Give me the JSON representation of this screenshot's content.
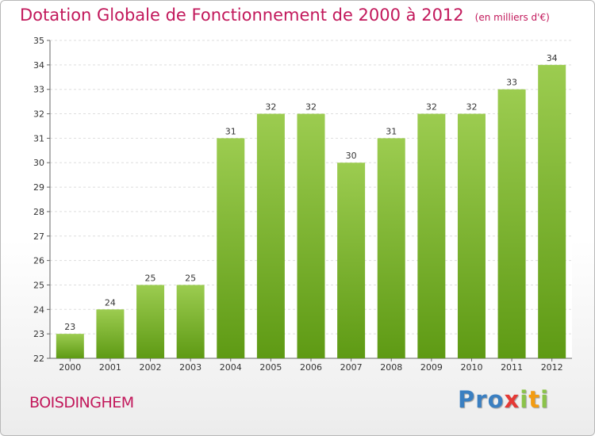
{
  "chart_data": {
    "type": "bar",
    "title": "Dotation Globale de Fonctionnement de 2000 à 2012",
    "subtitle": "(en milliers d'€)",
    "categories": [
      "2000",
      "2001",
      "2002",
      "2003",
      "2004",
      "2005",
      "2006",
      "2007",
      "2008",
      "2009",
      "2010",
      "2011",
      "2012"
    ],
    "values": [
      23,
      24,
      25,
      25,
      31,
      32,
      32,
      30,
      31,
      32,
      32,
      33,
      34
    ],
    "ylim": [
      22,
      35
    ],
    "yticks": [
      22,
      23,
      24,
      25,
      26,
      27,
      28,
      29,
      30,
      31,
      32,
      33,
      34,
      35
    ],
    "grid": true,
    "bar_color_top": "#9ccc50",
    "bar_color_bottom": "#5e9a14"
  },
  "footer": {
    "place": "BOISDINGHEM",
    "logo_letters": [
      {
        "ch": "P",
        "color": "#3a7fc1"
      },
      {
        "ch": "r",
        "color": "#3a7fc1"
      },
      {
        "ch": "o",
        "color": "#3a7fc1"
      },
      {
        "ch": "x",
        "color": "#e53935"
      },
      {
        "ch": "i",
        "color": "#8bc34a"
      },
      {
        "ch": "t",
        "color": "#f39c12"
      },
      {
        "ch": "i",
        "color": "#8bc34a"
      }
    ]
  }
}
